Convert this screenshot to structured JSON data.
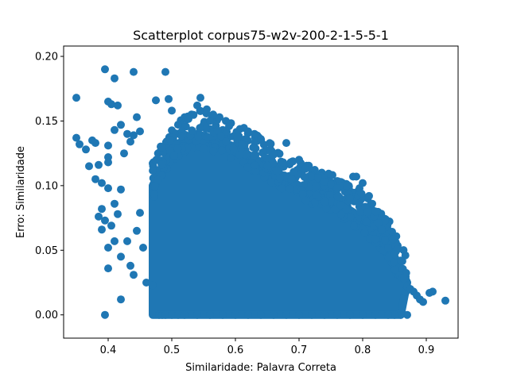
{
  "chart_data": {
    "type": "scatter",
    "title": "Scatterplot corpus75-w2v-200-2-1-5-5-1",
    "xlabel": "Similaridade: Palavra Correta",
    "ylabel": "Erro: Similaridade",
    "xlim": [
      0.33,
      0.95
    ],
    "ylim": [
      -0.018,
      0.208
    ],
    "xticks": [
      0.4,
      0.5,
      0.6,
      0.7,
      0.8,
      0.9
    ],
    "xtick_labels": [
      "0.4",
      "0.5",
      "0.6",
      "0.7",
      "0.8",
      "0.9"
    ],
    "yticks": [
      0.0,
      0.05,
      0.1,
      0.15,
      0.2
    ],
    "ytick_labels": [
      "0.00",
      "0.05",
      "0.10",
      "0.15",
      "0.20"
    ],
    "grid": false,
    "legend": "none",
    "marker_color": "#1f77b4",
    "series": [
      {
        "points": [
          [
            0.35,
            0.168
          ],
          [
            0.395,
            0.19
          ],
          [
            0.41,
            0.183
          ],
          [
            0.44,
            0.188
          ],
          [
            0.4,
            0.165
          ],
          [
            0.405,
            0.163
          ],
          [
            0.415,
            0.162
          ],
          [
            0.35,
            0.137
          ],
          [
            0.355,
            0.132
          ],
          [
            0.365,
            0.128
          ],
          [
            0.375,
            0.135
          ],
          [
            0.38,
            0.133
          ],
          [
            0.42,
            0.147
          ],
          [
            0.43,
            0.14
          ],
          [
            0.44,
            0.139
          ],
          [
            0.445,
            0.153
          ],
          [
            0.41,
            0.143
          ],
          [
            0.4,
            0.131
          ],
          [
            0.37,
            0.115
          ],
          [
            0.385,
            0.116
          ],
          [
            0.4,
            0.122
          ],
          [
            0.4,
            0.118
          ],
          [
            0.425,
            0.125
          ],
          [
            0.435,
            0.134
          ],
          [
            0.45,
            0.142
          ],
          [
            0.38,
            0.105
          ],
          [
            0.39,
            0.102
          ],
          [
            0.4,
            0.098
          ],
          [
            0.385,
            0.076
          ],
          [
            0.39,
            0.082
          ],
          [
            0.395,
            0.073
          ],
          [
            0.39,
            0.066
          ],
          [
            0.405,
            0.069
          ],
          [
            0.41,
            0.086
          ],
          [
            0.42,
            0.097
          ],
          [
            0.415,
            0.078
          ],
          [
            0.4,
            0.052
          ],
          [
            0.4,
            0.036
          ],
          [
            0.41,
            0.057
          ],
          [
            0.42,
            0.045
          ],
          [
            0.42,
            0.012
          ],
          [
            0.395,
            0.0
          ],
          [
            0.43,
            0.057
          ],
          [
            0.435,
            0.038
          ],
          [
            0.44,
            0.031
          ],
          [
            0.445,
            0.065
          ],
          [
            0.45,
            0.079
          ],
          [
            0.455,
            0.052
          ],
          [
            0.46,
            0.025
          ],
          [
            0.47,
            0.023
          ],
          [
            0.475,
            0.166
          ],
          [
            0.49,
            0.188
          ],
          [
            0.495,
            0.167
          ],
          [
            0.5,
            0.158
          ],
          [
            0.48,
            0.0
          ],
          [
            0.485,
            0.0
          ],
          [
            0.49,
            0.0
          ],
          [
            0.5,
            0.0
          ],
          [
            0.51,
            0.0
          ],
          [
            0.52,
            0.0
          ],
          [
            0.54,
            0.162
          ],
          [
            0.545,
            0.168
          ],
          [
            0.555,
            0.159
          ],
          [
            0.565,
            0.155
          ],
          [
            0.575,
            0.153
          ],
          [
            0.585,
            0.15
          ],
          [
            0.59,
            0.146
          ],
          [
            0.56,
            0.15
          ],
          [
            0.62,
            0.142
          ],
          [
            0.63,
            0.14
          ],
          [
            0.64,
            0.136
          ],
          [
            0.655,
            0.127
          ],
          [
            0.66,
            0.124
          ],
          [
            0.675,
            0.118
          ],
          [
            0.68,
            0.133
          ],
          [
            0.7,
            0.12
          ],
          [
            0.71,
            0.113
          ],
          [
            0.72,
            0.107
          ],
          [
            0.73,
            0.106
          ],
          [
            0.74,
            0.103
          ],
          [
            0.75,
            0.101
          ],
          [
            0.76,
            0.098
          ],
          [
            0.775,
            0.1
          ],
          [
            0.785,
            0.107
          ],
          [
            0.79,
            0.107
          ],
          [
            0.795,
            0.098
          ],
          [
            0.8,
            0.102
          ],
          [
            0.81,
            0.092
          ],
          [
            0.815,
            0.086
          ],
          [
            0.82,
            0.08
          ],
          [
            0.825,
            0.071
          ],
          [
            0.83,
            0.066
          ],
          [
            0.835,
            0.058
          ],
          [
            0.84,
            0.052
          ],
          [
            0.85,
            0.047
          ],
          [
            0.86,
            0.042
          ],
          [
            0.865,
            0.028
          ],
          [
            0.87,
            0.022
          ],
          [
            0.875,
            0.02
          ],
          [
            0.88,
            0.018
          ],
          [
            0.885,
            0.015
          ],
          [
            0.89,
            0.012
          ],
          [
            0.895,
            0.01
          ],
          [
            0.905,
            0.017
          ],
          [
            0.91,
            0.018
          ],
          [
            0.93,
            0.011
          ],
          [
            0.87,
            0.0
          ],
          [
            0.86,
            0.0
          ],
          [
            0.85,
            0.0
          ],
          [
            0.84,
            0.0
          ],
          [
            0.82,
            0.0
          ],
          [
            0.8,
            0.0
          ],
          [
            0.78,
            0.0
          ],
          [
            0.76,
            0.0
          ],
          [
            0.74,
            0.0
          ],
          [
            0.72,
            0.0
          ],
          [
            0.7,
            0.0
          ],
          [
            0.68,
            0.0
          ],
          [
            0.66,
            0.0
          ],
          [
            0.64,
            0.0
          ],
          [
            0.62,
            0.0
          ],
          [
            0.6,
            0.0
          ],
          [
            0.58,
            0.0
          ],
          [
            0.56,
            0.0
          ],
          [
            0.54,
            0.0
          ]
        ]
      }
    ],
    "dense_region": {
      "x": [
        0.47,
        0.47,
        0.5,
        0.54,
        0.6,
        0.65,
        0.7,
        0.75,
        0.8,
        0.84,
        0.87,
        0.86,
        0.8,
        0.7,
        0.6,
        0.5
      ],
      "y": [
        0.0,
        0.1,
        0.13,
        0.14,
        0.13,
        0.115,
        0.1,
        0.09,
        0.075,
        0.055,
        0.025,
        0.0,
        0.0,
        0.0,
        0.0,
        0.0
      ]
    }
  }
}
